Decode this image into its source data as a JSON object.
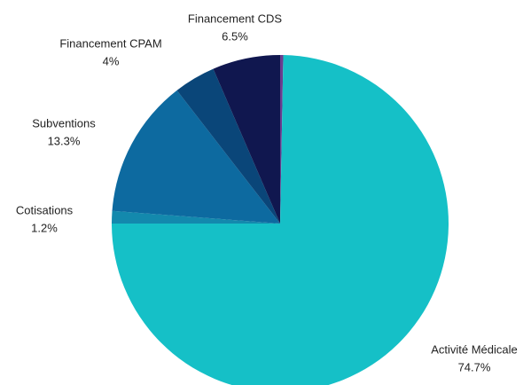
{
  "chart_data": {
    "type": "pie",
    "categories": [
      null,
      "Activité Médicale",
      "Cotisations",
      "Subventions",
      "Financement CPAM",
      "Financement CDS"
    ],
    "values": [
      0.3,
      74.7,
      1.2,
      13.3,
      4,
      6.5
    ],
    "value_labels": [
      null,
      "74.7%",
      "1.2%",
      "13.3%",
      "4%",
      "6.5%"
    ],
    "colors": [
      "#6a3d8f",
      "#15c0c7",
      "#1389ad",
      "#0d6aa0",
      "#0a4679",
      "#10174f"
    ]
  }
}
